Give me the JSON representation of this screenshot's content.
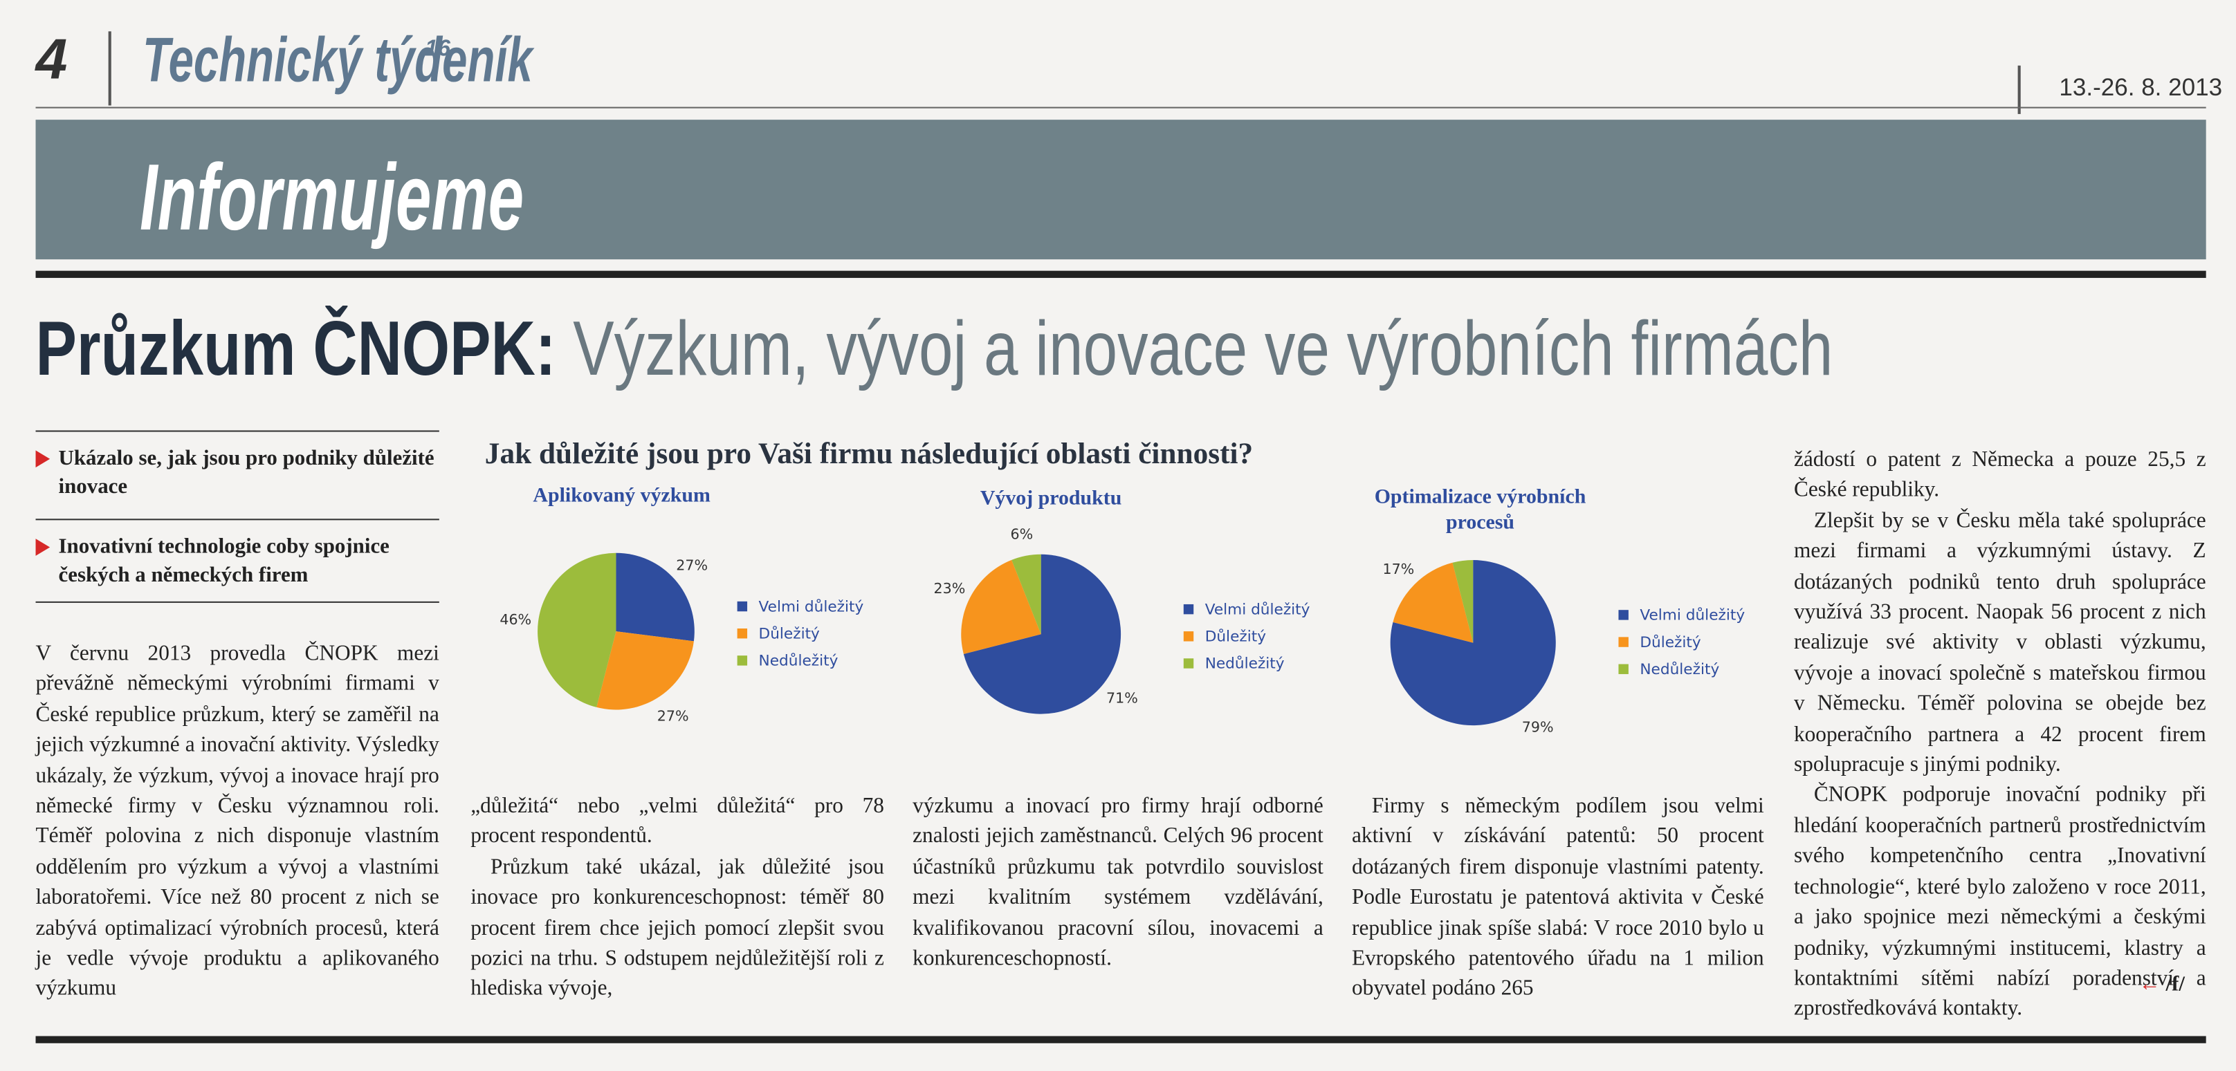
{
  "header": {
    "page_number": "4",
    "masthead": "Technický týdeník",
    "issue": "16",
    "date": "13.-26. 8. 2013",
    "section": "Informujeme"
  },
  "headline": {
    "lead": "Průzkum ČNOPK:",
    "rest": " Výzkum, vývoj a inovace ve výrobních firmách"
  },
  "sidebar": [
    "Ukázalo se, jak jsou pro podniky důležité inovace",
    "Inovativní technologie coby spojnice českých a německých firem"
  ],
  "chart_heading": "Jak důležité jsou pro Vaši firmu následující oblasti činnosti?",
  "chart_data": [
    {
      "type": "pie",
      "title": "Aplikovaný výzkum",
      "categories": [
        "Velmi důležitý",
        "Důležitý",
        "Nedůležitý"
      ],
      "values": [
        27,
        27,
        46
      ],
      "value_labels": [
        "27%",
        "27%",
        "46%"
      ],
      "colors": [
        "#2f4d9e",
        "#f7941d",
        "#9cbc3c"
      ]
    },
    {
      "type": "pie",
      "title": "Vývoj produktu",
      "categories": [
        "Velmi důležitý",
        "Důležitý",
        "Nedůležitý"
      ],
      "values": [
        71,
        23,
        6
      ],
      "value_labels": [
        "71%",
        "23%",
        "6%"
      ],
      "colors": [
        "#2f4d9e",
        "#f7941d",
        "#9cbc3c"
      ]
    },
    {
      "type": "pie",
      "title": "Optimalizace výrobních procesů",
      "categories": [
        "Velmi důležitý",
        "Důležitý",
        "Nedůležitý"
      ],
      "values": [
        79,
        17,
        4
      ],
      "value_labels": [
        "79%",
        "17%",
        null
      ],
      "colors": [
        "#2f4d9e",
        "#f7941d",
        "#9cbc3c"
      ]
    }
  ],
  "columns": [
    [
      "V červnu 2013 provedla ČNOPK mezi převážně německými výrobními firmami v České republice průzkum, který se zaměřil na jejich výzkumné a inovační aktivity. Výsledky ukázaly, že výzkum, vývoj a inovace hrají pro německé firmy v Česku významnou roli. Téměř polovina z nich disponuje vlastním oddělením pro výzkum a vývoj a vlastními laboratořemi. Více než 80 procent z nich se zabývá optimalizací výrobních procesů, která je vedle vývoje produktu a aplikovaného výzkumu"
    ],
    [
      "„důležitá“ nebo „velmi důležitá“ pro 78 procent respondentů.",
      "Průzkum také ukázal, jak důležité jsou inovace pro konkurenceschopnost: téměř 80 procent firem chce jejich pomocí zlepšit svou pozici na trhu. S odstupem nejdůležitější roli z hlediska vývoje,"
    ],
    [
      "výzkumu a inovací pro firmy hrají odborné znalosti jejich zaměstnanců. Celých 96 procent účastníků průzkumu tak potvrdilo souvislost mezi kvalitním systémem vzdělávání, kvalifikovanou pracovní sílou, inovacemi a konkurenceschopností."
    ],
    [
      "Firmy s německým podílem jsou velmi aktivní v získávání patentů: 50 procent dotázaných firem disponuje vlastními patenty. Podle Eurostatu je patentová aktivita v České republice jinak spíše slabá: V roce 2010 bylo u Evropského patentového úřadu na 1 milion obyvatel podáno 265"
    ],
    [
      "žádostí o patent z Německa a pouze 25,5 z České republiky.",
      "Zlepšit by se v Česku měla také spolupráce mezi firmami a výzkumnými ústavy. Z dotázaných podniků tento druh spolupráce využívá 33 procent. Naopak 56 procent z nich realizuje své aktivity v oblasti výzkumu, vývoje a inovací společně s mateřskou firmou v Německu. Téměř polovina se obejde bez kooperačního partnera a 42 procent firem spolupracuje s jinými podniky.",
      "ČNOPK podporuje inovační podniky při hledání kooperačních partnerů prostřednictvím svého kompetenčního centra „Inovativní technologie“, které bylo založeno v roce 2011, a jako spojnice mezi německými a českými podniky, výzkumnými institucemi, klastry a kontaktními sítěmi nabízí poradenství a zprostředkovává kontakty."
    ]
  ],
  "signature": "/f/"
}
